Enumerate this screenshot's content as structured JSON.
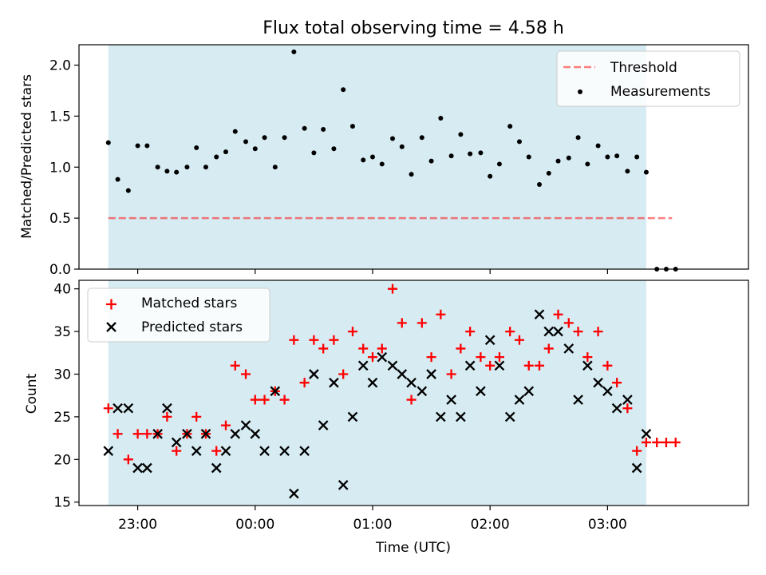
{
  "chart_data": {
    "type": "scatter",
    "title": "Flux total observing time = 4.58 h",
    "colors": {
      "shade": "#add8e6",
      "threshold": "#ff0000",
      "measurements": "#000000",
      "matched": "#ff0000",
      "predicted": "#000000"
    },
    "x_axis": {
      "label": "Time (UTC)",
      "tick_values_h": [
        23,
        24,
        25,
        26,
        27
      ],
      "tick_labels": [
        "23:00",
        "00:00",
        "01:00",
        "02:00",
        "03:00"
      ],
      "range_h": [
        22.5,
        28.2
      ]
    },
    "shaded_span_h": [
      22.75,
      27.33
    ],
    "top_panel": {
      "ylabel": "Matched/Predicted stars",
      "ylim": [
        0,
        2.2
      ],
      "yticks": [
        0.0,
        0.5,
        1.0,
        1.5,
        2.0
      ],
      "ytick_labels": [
        "0.0",
        "0.5",
        "1.0",
        "1.5",
        "2.0"
      ],
      "legend": {
        "placement": "upper-right",
        "threshold_label": "Threshold",
        "measurements_label": "Measurements"
      },
      "threshold": {
        "value": 0.5,
        "x_range_h": [
          22.75,
          27.55
        ]
      },
      "measurements": {
        "x": [
          22.75,
          22.83,
          22.92,
          23,
          23.08,
          23.17,
          23.25,
          23.33,
          23.42,
          23.5,
          23.58,
          23.67,
          23.75,
          23.83,
          23.92,
          24,
          24.08,
          24.17,
          24.25,
          24.33,
          24.42,
          24.5,
          24.58,
          24.67,
          24.75,
          24.83,
          24.92,
          25,
          25.08,
          25.17,
          25.25,
          25.33,
          25.42,
          25.5,
          25.58,
          25.67,
          25.75,
          25.83,
          25.92,
          26,
          26.08,
          26.17,
          26.25,
          26.33,
          26.42,
          26.5,
          26.58,
          26.67,
          26.75,
          26.83,
          26.92,
          27,
          27.08,
          27.17,
          27.25,
          27.33,
          27.42,
          27.5,
          27.58
        ],
        "y": [
          1.24,
          0.88,
          0.77,
          1.21,
          1.21,
          1.0,
          0.96,
          0.95,
          1.0,
          1.19,
          1.0,
          1.1,
          1.15,
          1.35,
          1.25,
          1.18,
          1.29,
          1.0,
          1.29,
          2.13,
          1.38,
          1.14,
          1.37,
          1.18,
          1.76,
          1.4,
          1.07,
          1.1,
          1.03,
          1.28,
          1.2,
          0.93,
          1.29,
          1.06,
          1.48,
          1.11,
          1.32,
          1.13,
          1.14,
          0.91,
          1.03,
          1.4,
          1.25,
          1.1,
          0.83,
          0.94,
          1.06,
          1.09,
          1.29,
          1.03,
          1.21,
          1.1,
          1.11,
          0.96,
          1.1,
          0.95,
          0,
          0,
          0
        ]
      }
    },
    "bottom_panel": {
      "ylabel": "Count",
      "ylim": [
        14.6,
        41
      ],
      "yticks": [
        15,
        20,
        25,
        30,
        35,
        40
      ],
      "ytick_labels": [
        "15",
        "20",
        "25",
        "30",
        "35",
        "40"
      ],
      "legend": {
        "placement": "upper-left",
        "matched_label": "Matched stars",
        "predicted_label": "Predicted stars"
      },
      "matched": {
        "x": [
          22.75,
          22.83,
          22.92,
          23,
          23.08,
          23.17,
          23.25,
          23.33,
          23.42,
          23.5,
          23.58,
          23.67,
          23.75,
          23.83,
          23.92,
          24,
          24.08,
          24.17,
          24.25,
          24.33,
          24.42,
          24.5,
          24.58,
          24.67,
          24.75,
          24.83,
          24.92,
          25,
          25.08,
          25.17,
          25.25,
          25.33,
          25.42,
          25.5,
          25.58,
          25.67,
          25.75,
          25.83,
          25.92,
          26,
          26.08,
          26.17,
          26.25,
          26.33,
          26.42,
          26.5,
          26.58,
          26.67,
          26.75,
          26.83,
          26.92,
          27,
          27.08,
          27.17,
          27.25,
          27.33,
          27.42,
          27.5,
          27.58
        ],
        "y": [
          26,
          23,
          20,
          23,
          23,
          23,
          25,
          21,
          23,
          25,
          23,
          21,
          24,
          31,
          30,
          27,
          27,
          28,
          27,
          34,
          29,
          34,
          33,
          34,
          30,
          35,
          33,
          32,
          33,
          40,
          36,
          27,
          36,
          32,
          37,
          30,
          33,
          35,
          32,
          31,
          32,
          35,
          34,
          31,
          31,
          33,
          37,
          36,
          35,
          32,
          35,
          31,
          29,
          26,
          21,
          22,
          22,
          22,
          22
        ]
      },
      "predicted": {
        "x": [
          22.75,
          22.83,
          22.92,
          23,
          23.08,
          23.17,
          23.25,
          23.33,
          23.42,
          23.5,
          23.58,
          23.67,
          23.75,
          23.83,
          23.92,
          24,
          24.08,
          24.17,
          24.25,
          24.33,
          24.42,
          24.5,
          24.58,
          24.67,
          24.75,
          24.83,
          24.92,
          25,
          25.08,
          25.17,
          25.25,
          25.33,
          25.42,
          25.5,
          25.58,
          25.67,
          25.75,
          25.83,
          25.92,
          26,
          26.08,
          26.17,
          26.25,
          26.33,
          26.42,
          26.5,
          26.58,
          26.67,
          26.75,
          26.83,
          26.92,
          27,
          27.08,
          27.17,
          27.25,
          27.33
        ],
        "y": [
          21,
          26,
          26,
          19,
          19,
          23,
          26,
          22,
          23,
          21,
          23,
          19,
          21,
          23,
          24,
          23,
          21,
          28,
          21,
          16,
          21,
          30,
          24,
          29,
          17,
          25,
          31,
          29,
          32,
          31,
          30,
          29,
          28,
          30,
          25,
          27,
          25,
          31,
          28,
          34,
          31,
          25,
          27,
          28,
          37,
          35,
          35,
          33,
          27,
          31,
          29,
          28,
          26,
          27,
          19,
          23
        ]
      }
    }
  }
}
